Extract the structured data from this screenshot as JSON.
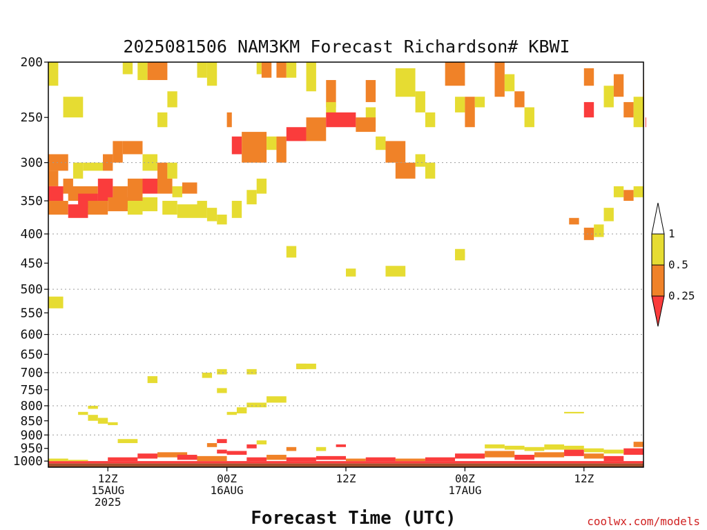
{
  "chart_data": {
    "type": "heatmap",
    "title": "2025081506 NAM3KM Forecast Richardson# KBWI",
    "xlabel": "Forecast Time (UTC)",
    "ylabel": "",
    "credit": "coolwx.com/models",
    "y_scale": "log",
    "ylim": [
      1025,
      200
    ],
    "y_ticks": [
      200,
      250,
      300,
      350,
      400,
      450,
      500,
      550,
      600,
      650,
      700,
      750,
      800,
      850,
      900,
      950,
      1000
    ],
    "y_grid_levels": [
      300,
      400,
      500,
      600,
      700,
      800,
      900
    ],
    "x_range_hours": [
      6,
      66
    ],
    "x_ticks": [
      {
        "hour": 12,
        "line1": "12Z",
        "line2": "15AUG",
        "line3": "2025"
      },
      {
        "hour": 24,
        "line1": "00Z",
        "line2": "16AUG",
        "line3": ""
      },
      {
        "hour": 36,
        "line1": "12Z",
        "line2": "",
        "line3": ""
      },
      {
        "hour": 48,
        "line1": "00Z",
        "line2": "17AUG",
        "line3": ""
      },
      {
        "hour": 60,
        "line1": "12Z",
        "line2": "",
        "line3": ""
      }
    ],
    "legend": {
      "placement": "right",
      "labels": [
        "1",
        "0.5",
        "0.25"
      ],
      "bins": [
        {
          "range": "> 1",
          "color": "#ffffff"
        },
        {
          "range": "0.5 - 1",
          "color": "#e6dc32"
        },
        {
          "range": "0.25 - 0.5",
          "color": "#f08228"
        },
        {
          "range": "< 0.25",
          "color": "#fa3c3c"
        }
      ]
    },
    "colors": {
      "y": "#e6dc32",
      "o": "#f08228",
      "r": "#fa3c3c",
      "ground": "#a0522d"
    },
    "ground_level_hpa": 1010,
    "cells": [
      [
        6,
        7,
        200,
        220,
        "y"
      ],
      [
        7.5,
        9.5,
        230,
        250,
        "y"
      ],
      [
        13.5,
        14.5,
        200,
        210,
        "y"
      ],
      [
        15,
        16,
        200,
        215,
        "y"
      ],
      [
        16,
        18,
        200,
        215,
        "o"
      ],
      [
        17,
        18,
        245,
        260,
        "y"
      ],
      [
        18,
        19,
        225,
        240,
        "y"
      ],
      [
        21,
        22,
        200,
        213,
        "y"
      ],
      [
        22,
        23,
        200,
        220,
        "y"
      ],
      [
        27,
        27.5,
        200,
        210,
        "y"
      ],
      [
        27.5,
        28.5,
        200,
        213,
        "o"
      ],
      [
        29,
        30,
        200,
        213,
        "o"
      ],
      [
        30,
        31,
        200,
        213,
        "y"
      ],
      [
        32,
        33,
        200,
        225,
        "y"
      ],
      [
        34,
        35,
        215,
        240,
        "o"
      ],
      [
        34,
        35,
        235,
        250,
        "y"
      ],
      [
        38,
        39,
        215,
        235,
        "o"
      ],
      [
        38,
        39,
        240,
        260,
        "y"
      ],
      [
        41,
        43,
        205,
        230,
        "y"
      ],
      [
        43,
        44,
        225,
        245,
        "y"
      ],
      [
        44,
        45,
        245,
        260,
        "y"
      ],
      [
        46,
        48,
        200,
        220,
        "o"
      ],
      [
        47,
        48,
        230,
        245,
        "y"
      ],
      [
        48,
        49,
        230,
        260,
        "o"
      ],
      [
        49,
        50,
        230,
        240,
        "y"
      ],
      [
        51,
        52,
        200,
        230,
        "o"
      ],
      [
        52,
        53,
        210,
        225,
        "y"
      ],
      [
        53,
        54,
        225,
        240,
        "o"
      ],
      [
        54,
        55,
        240,
        260,
        "y"
      ],
      [
        60,
        61,
        205,
        220,
        "o"
      ],
      [
        60,
        61,
        235,
        250,
        "r"
      ],
      [
        62,
        63,
        220,
        240,
        "y"
      ],
      [
        63,
        64,
        210,
        230,
        "o"
      ],
      [
        64,
        65,
        235,
        250,
        "o"
      ],
      [
        65,
        66,
        230,
        260,
        "y"
      ],
      [
        66,
        66.5,
        215,
        260,
        "o"
      ],
      [
        66.2,
        66.8,
        250,
        260,
        "r"
      ],
      [
        24,
        24.5,
        245,
        260,
        "o"
      ],
      [
        24.5,
        25.5,
        270,
        290,
        "r"
      ],
      [
        25.5,
        28,
        265,
        300,
        "o"
      ],
      [
        28,
        29,
        270,
        285,
        "y"
      ],
      [
        29,
        30,
        270,
        300,
        "o"
      ],
      [
        30,
        32,
        260,
        275,
        "r"
      ],
      [
        32,
        34,
        250,
        275,
        "o"
      ],
      [
        34,
        37,
        245,
        260,
        "r"
      ],
      [
        37,
        39,
        250,
        265,
        "o"
      ],
      [
        39,
        40,
        270,
        285,
        "y"
      ],
      [
        40,
        42,
        275,
        300,
        "o"
      ],
      [
        41,
        43,
        300,
        320,
        "o"
      ],
      [
        43,
        44,
        290,
        305,
        "y"
      ],
      [
        44,
        45,
        300,
        320,
        "y"
      ],
      [
        6,
        8,
        290,
        310,
        "o"
      ],
      [
        6,
        7,
        310,
        330,
        "o"
      ],
      [
        6,
        7.5,
        330,
        350,
        "r"
      ],
      [
        7.5,
        8.5,
        320,
        340,
        "o"
      ],
      [
        8.5,
        9.5,
        300,
        320,
        "y"
      ],
      [
        9.5,
        11.5,
        300,
        310,
        "y"
      ],
      [
        11.5,
        12.5,
        290,
        310,
        "o"
      ],
      [
        12.5,
        13.5,
        275,
        300,
        "o"
      ],
      [
        13.5,
        15.5,
        275,
        290,
        "o"
      ],
      [
        15.5,
        17,
        290,
        310,
        "y"
      ],
      [
        17,
        18,
        300,
        330,
        "o"
      ],
      [
        18,
        19,
        300,
        320,
        "y"
      ],
      [
        8,
        11,
        330,
        350,
        "o"
      ],
      [
        9,
        11,
        340,
        360,
        "r"
      ],
      [
        11,
        12.5,
        320,
        350,
        "r"
      ],
      [
        12.5,
        14,
        330,
        360,
        "o"
      ],
      [
        14,
        15.5,
        320,
        350,
        "o"
      ],
      [
        15.5,
        17,
        320,
        340,
        "r"
      ],
      [
        17,
        18.5,
        320,
        340,
        "o"
      ],
      [
        18.5,
        19.5,
        330,
        345,
        "y"
      ],
      [
        19.5,
        21,
        325,
        340,
        "o"
      ],
      [
        6,
        8,
        350,
        370,
        "o"
      ],
      [
        8,
        10,
        355,
        375,
        "r"
      ],
      [
        10,
        12,
        350,
        370,
        "o"
      ],
      [
        12,
        14,
        345,
        365,
        "o"
      ],
      [
        14,
        15.5,
        350,
        370,
        "y"
      ],
      [
        15.5,
        17,
        345,
        365,
        "y"
      ],
      [
        17.5,
        19,
        350,
        370,
        "y"
      ],
      [
        19,
        21,
        355,
        375,
        "y"
      ],
      [
        21,
        22,
        350,
        375,
        "y"
      ],
      [
        22,
        23,
        360,
        380,
        "y"
      ],
      [
        23,
        24,
        370,
        385,
        "y"
      ],
      [
        24.5,
        25.5,
        350,
        375,
        "y"
      ],
      [
        26,
        27,
        335,
        355,
        "y"
      ],
      [
        27,
        28,
        320,
        340,
        "y"
      ],
      [
        36,
        37,
        460,
        475,
        "y"
      ],
      [
        40,
        42,
        455,
        475,
        "y"
      ],
      [
        47,
        48,
        425,
        440,
        "y"
      ],
      [
        58.5,
        59.5,
        375,
        385,
        "o"
      ],
      [
        60,
        61,
        390,
        410,
        "o"
      ],
      [
        61,
        62,
        385,
        405,
        "y"
      ],
      [
        62,
        63,
        360,
        380,
        "y"
      ],
      [
        63,
        64,
        330,
        345,
        "y"
      ],
      [
        64,
        65,
        335,
        350,
        "o"
      ],
      [
        65,
        66,
        330,
        345,
        "y"
      ],
      [
        6,
        7.5,
        515,
        540,
        "y"
      ],
      [
        30,
        31,
        420,
        440,
        "y"
      ],
      [
        31,
        32,
        675,
        690,
        "o"
      ],
      [
        31,
        33,
        675,
        690,
        "y"
      ],
      [
        28,
        30,
        770,
        790,
        "y"
      ],
      [
        26,
        28,
        790,
        805,
        "y"
      ],
      [
        25,
        26,
        805,
        815,
        "y"
      ],
      [
        23,
        24,
        745,
        760,
        "y"
      ],
      [
        23,
        24,
        690,
        705,
        "y"
      ],
      [
        21.5,
        22.5,
        700,
        715,
        "y"
      ],
      [
        16,
        17,
        710,
        730,
        "y"
      ],
      [
        10,
        11,
        800,
        810,
        "y"
      ],
      [
        9,
        10,
        820,
        830,
        "y"
      ],
      [
        10,
        11,
        830,
        850,
        "y"
      ],
      [
        11,
        12,
        840,
        860,
        "y"
      ],
      [
        12,
        13,
        855,
        865,
        "y"
      ],
      [
        26,
        27,
        690,
        705,
        "y"
      ],
      [
        24,
        25,
        820,
        830,
        "y"
      ],
      [
        25,
        26,
        810,
        825,
        "y"
      ],
      [
        47,
        48,
        430,
        445,
        "y"
      ],
      [
        58,
        60,
        820,
        825,
        "y"
      ],
      [
        6,
        66,
        1000,
        1010,
        "r"
      ],
      [
        12,
        15,
        985,
        1000,
        "r"
      ],
      [
        15,
        17,
        970,
        990,
        "r"
      ],
      [
        17,
        20,
        965,
        985,
        "o"
      ],
      [
        19,
        21,
        975,
        995,
        "r"
      ],
      [
        21,
        24,
        980,
        1000,
        "o"
      ],
      [
        23,
        24,
        955,
        970,
        "r"
      ],
      [
        24,
        26,
        960,
        975,
        "r"
      ],
      [
        26,
        28,
        985,
        1000,
        "r"
      ],
      [
        28,
        30,
        975,
        995,
        "o"
      ],
      [
        30,
        33,
        985,
        1000,
        "r"
      ],
      [
        33,
        36,
        980,
        995,
        "r"
      ],
      [
        36,
        38,
        990,
        1000,
        "o"
      ],
      [
        38,
        41,
        985,
        1000,
        "r"
      ],
      [
        41,
        44,
        990,
        1000,
        "o"
      ],
      [
        44,
        47,
        985,
        1000,
        "r"
      ],
      [
        47,
        50,
        970,
        990,
        "r"
      ],
      [
        50,
        53,
        960,
        985,
        "o"
      ],
      [
        53,
        55,
        975,
        995,
        "r"
      ],
      [
        55,
        58,
        965,
        985,
        "o"
      ],
      [
        58,
        60,
        955,
        980,
        "r"
      ],
      [
        60,
        62,
        970,
        990,
        "o"
      ],
      [
        62,
        64,
        980,
        1000,
        "r"
      ],
      [
        64,
        66,
        950,
        975,
        "r"
      ],
      [
        65,
        66,
        925,
        945,
        "o"
      ],
      [
        50,
        52,
        935,
        950,
        "y"
      ],
      [
        52,
        54,
        940,
        955,
        "y"
      ],
      [
        54,
        56,
        945,
        960,
        "y"
      ],
      [
        56,
        58,
        935,
        955,
        "y"
      ],
      [
        58,
        60,
        940,
        955,
        "y"
      ],
      [
        60,
        62,
        950,
        965,
        "y"
      ],
      [
        62,
        64,
        955,
        970,
        "y"
      ],
      [
        22,
        23,
        930,
        945,
        "o"
      ],
      [
        23,
        24,
        915,
        930,
        "r"
      ],
      [
        26,
        27,
        935,
        950,
        "r"
      ],
      [
        27,
        28,
        920,
        935,
        "y"
      ],
      [
        30,
        31,
        945,
        960,
        "o"
      ],
      [
        33,
        34,
        945,
        960,
        "y"
      ],
      [
        35,
        36,
        935,
        945,
        "r"
      ],
      [
        13,
        15,
        915,
        930,
        "y"
      ],
      [
        6,
        8,
        990,
        1000,
        "y"
      ],
      [
        8,
        10,
        995,
        1000,
        "y"
      ]
    ]
  }
}
